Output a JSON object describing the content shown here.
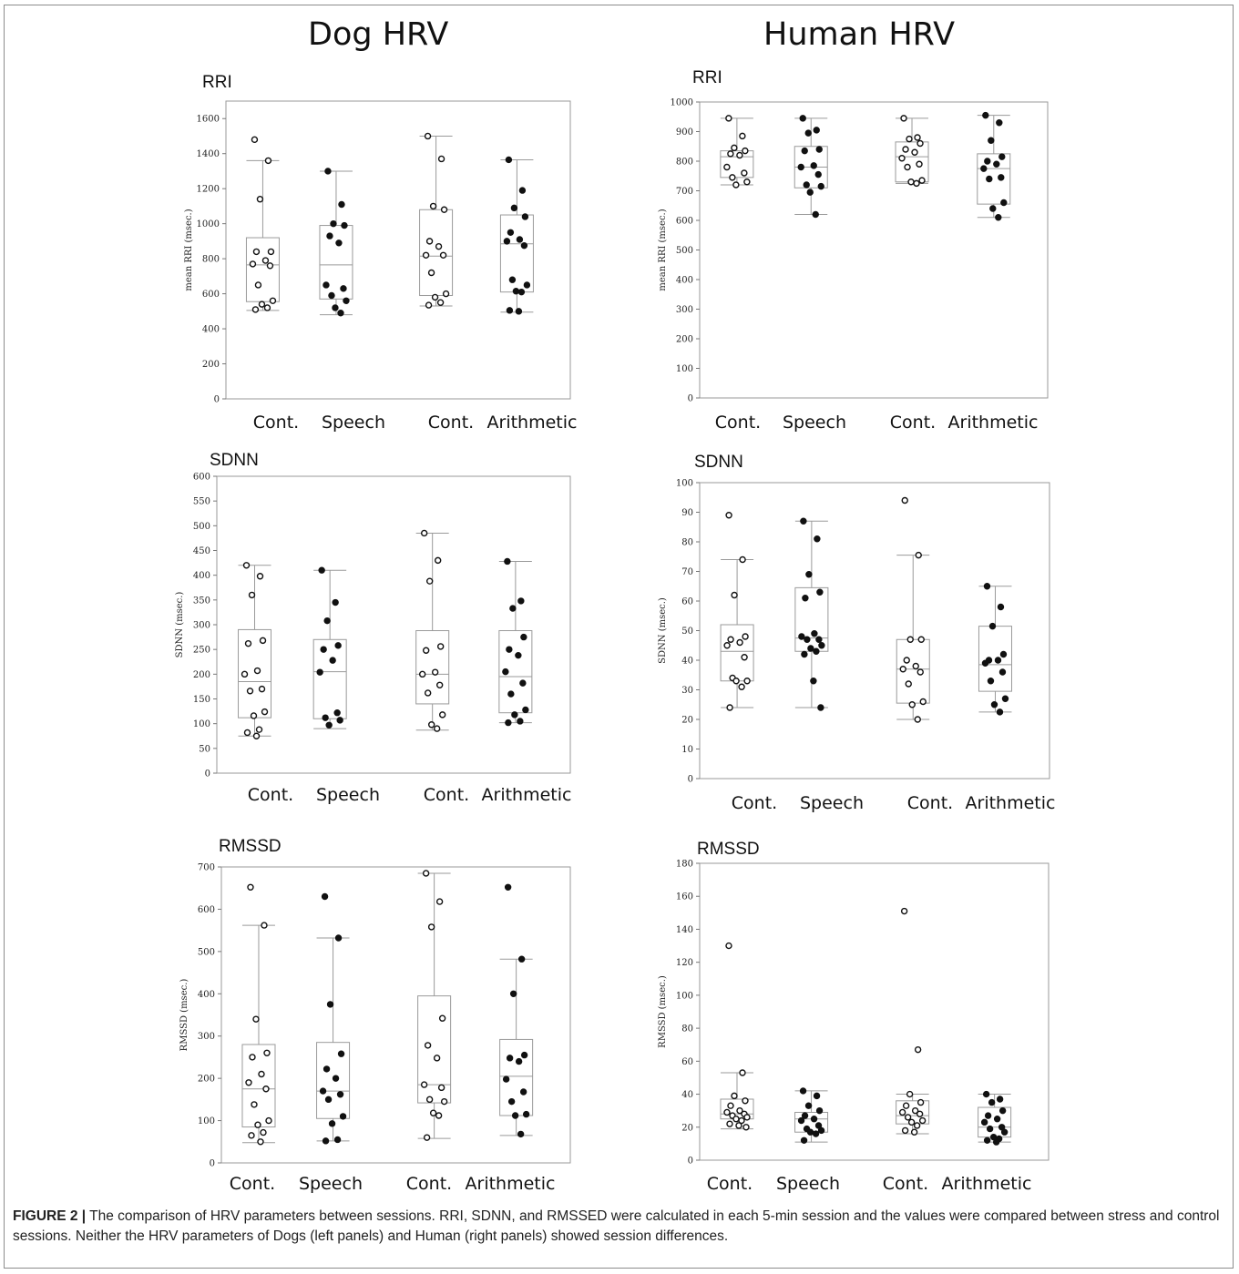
{
  "titles": {
    "left": "Dog HRV",
    "right": "Human HRV"
  },
  "caption": {
    "label": "FIGURE 2 |",
    "text": "The comparison of HRV parameters between sessions. RRI, SDNN, and RMSSED were calculated in each 5-min session and the values were compared between stress and control sessions. Neither the HRV parameters of Dogs (left panels) and Human (right panels) showed session differences."
  },
  "chart_data": [
    {
      "id": "dog-rri",
      "type": "box",
      "title": "RRI",
      "ylabel": "mean RRI (msec.)",
      "ylim": [
        0,
        1700
      ],
      "yticks": [
        0,
        200,
        400,
        600,
        800,
        1000,
        1200,
        1400,
        1600
      ],
      "categories": [
        "Cont.",
        "Speech",
        "Cont.",
        "Arithmetic"
      ],
      "boxes": [
        {
          "min": 505,
          "q1": 555,
          "median": 765,
          "q3": 920,
          "max": 1360,
          "filled": false,
          "points": [
            1480,
            1360,
            1140,
            840,
            840,
            790,
            770,
            760,
            650,
            560,
            540,
            520,
            510
          ]
        },
        {
          "min": 480,
          "q1": 570,
          "median": 765,
          "q3": 990,
          "max": 1300,
          "filled": true,
          "points": [
            1300,
            1110,
            1000,
            990,
            930,
            890,
            650,
            630,
            590,
            560,
            520,
            490
          ]
        },
        {
          "min": 530,
          "q1": 590,
          "median": 815,
          "q3": 1080,
          "max": 1500,
          "filled": false,
          "points": [
            1500,
            1370,
            1100,
            1080,
            900,
            870,
            820,
            820,
            720,
            600,
            580,
            550,
            535
          ]
        },
        {
          "min": 495,
          "q1": 610,
          "median": 885,
          "q3": 1050,
          "max": 1365,
          "filled": true,
          "points": [
            1365,
            1190,
            1090,
            1040,
            950,
            910,
            900,
            875,
            680,
            650,
            615,
            610,
            505,
            500
          ]
        }
      ]
    },
    {
      "id": "human-rri",
      "type": "box",
      "title": "RRI",
      "ylabel": "mean RRI (msec.)",
      "ylim": [
        0,
        1000
      ],
      "yticks": [
        0,
        100,
        200,
        300,
        400,
        500,
        600,
        700,
        800,
        900,
        1000
      ],
      "categories": [
        "Cont.",
        "Speech",
        "Cont.",
        "Arithmetic"
      ],
      "boxes": [
        {
          "min": 720,
          "q1": 745,
          "median": 815,
          "q3": 835,
          "max": 945,
          "filled": false,
          "points": [
            945,
            885,
            845,
            835,
            825,
            820,
            780,
            760,
            745,
            730,
            720
          ]
        },
        {
          "min": 620,
          "q1": 710,
          "median": 780,
          "q3": 850,
          "max": 945,
          "filled": true,
          "points": [
            945,
            905,
            895,
            840,
            835,
            785,
            780,
            755,
            720,
            715,
            695,
            620
          ]
        },
        {
          "min": 725,
          "q1": 730,
          "median": 815,
          "q3": 865,
          "max": 945,
          "filled": false,
          "points": [
            945,
            880,
            875,
            860,
            840,
            830,
            810,
            790,
            780,
            735,
            730,
            725
          ]
        },
        {
          "min": 610,
          "q1": 655,
          "median": 775,
          "q3": 825,
          "max": 955,
          "filled": true,
          "points": [
            955,
            930,
            870,
            815,
            800,
            790,
            775,
            745,
            740,
            660,
            640,
            610
          ]
        }
      ]
    },
    {
      "id": "dog-sdnn",
      "type": "box",
      "title": "SDNN",
      "ylabel": "SDNN (msec.)",
      "ylim": [
        0,
        600
      ],
      "yticks": [
        0,
        50,
        100,
        150,
        200,
        250,
        300,
        350,
        400,
        450,
        500,
        550,
        600
      ],
      "categories": [
        "Cont.",
        "Speech",
        "Cont.",
        "Arithmetic"
      ],
      "boxes": [
        {
          "min": 75,
          "q1": 112,
          "median": 185,
          "q3": 290,
          "max": 420,
          "filled": false,
          "points": [
            420,
            398,
            360,
            268,
            262,
            207,
            200,
            170,
            166,
            124,
            116,
            88,
            82,
            75
          ]
        },
        {
          "min": 90,
          "q1": 110,
          "median": 205,
          "q3": 270,
          "max": 410,
          "filled": true,
          "points": [
            410,
            345,
            308,
            258,
            250,
            228,
            204,
            122,
            112,
            107,
            97
          ]
        },
        {
          "min": 87,
          "q1": 140,
          "median": 200,
          "q3": 288,
          "max": 485,
          "filled": false,
          "points": [
            485,
            430,
            388,
            256,
            248,
            204,
            200,
            178,
            162,
            118,
            98,
            90
          ]
        },
        {
          "min": 102,
          "q1": 122,
          "median": 195,
          "q3": 288,
          "max": 428,
          "filled": true,
          "points": [
            428,
            348,
            333,
            275,
            250,
            238,
            205,
            182,
            160,
            128,
            118,
            105,
            102
          ]
        }
      ]
    },
    {
      "id": "human-sdnn",
      "type": "box",
      "title": "SDNN",
      "ylabel": "SDNN (msec.)",
      "ylim": [
        0,
        100
      ],
      "yticks": [
        0,
        10,
        20,
        30,
        40,
        50,
        60,
        70,
        80,
        90,
        100
      ],
      "categories": [
        "Cont.",
        "Speech",
        "Cont.",
        "Arithmetic"
      ],
      "boxes": [
        {
          "min": 24,
          "q1": 33,
          "median": 43,
          "q3": 52,
          "max": 74,
          "filled": false,
          "points": [
            89,
            74,
            62,
            48,
            47,
            46,
            45,
            41,
            34,
            33,
            33,
            31,
            24
          ]
        },
        {
          "min": 24,
          "q1": 43,
          "median": 47.5,
          "q3": 64.5,
          "max": 87,
          "filled": true,
          "points": [
            87,
            81,
            69,
            63,
            61,
            49,
            48,
            47,
            47,
            45,
            44,
            43,
            42,
            33,
            24
          ]
        },
        {
          "min": 20,
          "q1": 25.5,
          "median": 37,
          "q3": 47,
          "max": 75.5,
          "filled": false,
          "points": [
            94,
            75.5,
            47,
            47,
            40,
            38,
            37,
            36,
            32,
            26,
            25,
            20
          ]
        },
        {
          "min": 22.5,
          "q1": 29.5,
          "median": 38.5,
          "q3": 51.5,
          "max": 65,
          "filled": true,
          "points": [
            65,
            58,
            51.5,
            42,
            40,
            40,
            39,
            36,
            33,
            27,
            25,
            22.5
          ]
        }
      ]
    },
    {
      "id": "dog-rmssd",
      "type": "box",
      "title": "RMSSD",
      "ylabel": "RMSSD (msec.)",
      "ylim": [
        0,
        700
      ],
      "yticks": [
        0,
        100,
        200,
        300,
        400,
        500,
        600,
        700
      ],
      "categories": [
        "Cont.",
        "Speech",
        "Cont.",
        "Arithmetic"
      ],
      "boxes": [
        {
          "min": 48,
          "q1": 85,
          "median": 175,
          "q3": 280,
          "max": 562,
          "filled": false,
          "points": [
            652,
            562,
            340,
            260,
            250,
            210,
            190,
            175,
            138,
            100,
            90,
            72,
            65,
            50
          ]
        },
        {
          "min": 52,
          "q1": 105,
          "median": 170,
          "q3": 285,
          "max": 532,
          "filled": true,
          "points": [
            630,
            532,
            375,
            258,
            222,
            200,
            170,
            162,
            150,
            110,
            93,
            55,
            52
          ]
        },
        {
          "min": 58,
          "q1": 142,
          "median": 185,
          "q3": 395,
          "max": 685,
          "filled": false,
          "points": [
            685,
            618,
            558,
            342,
            278,
            248,
            185,
            178,
            150,
            145,
            118,
            112,
            60
          ]
        },
        {
          "min": 65,
          "q1": 112,
          "median": 205,
          "q3": 292,
          "max": 482,
          "filled": true,
          "points": [
            652,
            482,
            400,
            255,
            248,
            240,
            198,
            168,
            145,
            115,
            112,
            68
          ]
        }
      ]
    },
    {
      "id": "human-rmssd",
      "type": "box",
      "title": "RMSSD",
      "ylabel": "RMSSD (msec.)",
      "ylim": [
        0,
        180
      ],
      "yticks": [
        0,
        20,
        40,
        60,
        80,
        100,
        120,
        140,
        160,
        180
      ],
      "categories": [
        "Cont.",
        "Speech",
        "Cont.",
        "Arithmetic"
      ],
      "boxes": [
        {
          "min": 19,
          "q1": 25,
          "median": 28,
          "q3": 37,
          "max": 53,
          "filled": false,
          "points": [
            130,
            53,
            39,
            36,
            33,
            30,
            29,
            28,
            27,
            26,
            25,
            24,
            22,
            21,
            20
          ]
        },
        {
          "min": 11,
          "q1": 17,
          "median": 25,
          "q3": 29,
          "max": 42,
          "filled": true,
          "points": [
            42,
            39,
            33,
            30,
            27,
            25,
            24,
            21,
            19,
            18,
            17,
            16,
            12
          ]
        },
        {
          "min": 16,
          "q1": 22,
          "median": 27,
          "q3": 36,
          "max": 40,
          "filled": false,
          "points": [
            151,
            67,
            40,
            35,
            33,
            30,
            29,
            28,
            26,
            24,
            23,
            21,
            18,
            17
          ]
        },
        {
          "min": 11,
          "q1": 14,
          "median": 20,
          "q3": 32,
          "max": 40,
          "filled": true,
          "points": [
            40,
            37,
            35,
            30,
            27,
            25,
            23,
            20,
            19,
            17,
            14,
            13,
            12,
            11
          ]
        }
      ]
    }
  ]
}
